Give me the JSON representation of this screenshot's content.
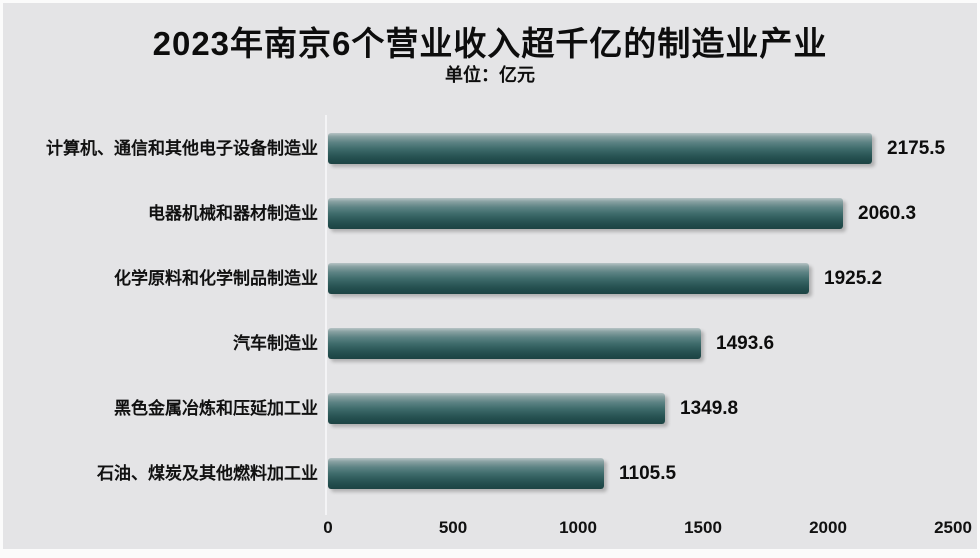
{
  "chart_data": {
    "type": "bar",
    "orientation": "horizontal",
    "title": "2023年南京6个营业收入超千亿的制造业产业",
    "unit_label": "单位：亿元",
    "categories": [
      "计算机、通信和其他电子设备制造业",
      "电器机械和器材制造业",
      "化学原料和化学制品制造业",
      "汽车制造业",
      "黑色金属冶炼和压延加工业",
      "石油、煤炭及其他燃料加工业"
    ],
    "values": [
      2175.5,
      2060.3,
      1925.2,
      1493.6,
      1349.8,
      1105.5
    ],
    "value_labels": [
      "2175.5",
      "2060.3",
      "1925.2",
      "1493.6",
      "1349.8",
      "1105.5"
    ],
    "xlabel": "",
    "ylabel": "",
    "xlim": [
      0,
      2500
    ],
    "xticks": [
      "0",
      "500",
      "1000",
      "1500",
      "2000",
      "2500"
    ],
    "grid": false,
    "legend": false,
    "colors": {
      "bar_gradient_top": "#b6c3c5",
      "bar_gradient_bottom": "#1d4343",
      "background": "#e4e4e6",
      "text": "#0d0d0d"
    }
  }
}
